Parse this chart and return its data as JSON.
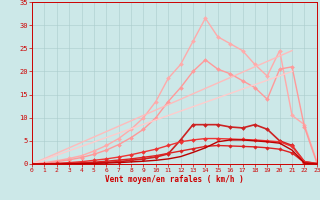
{
  "xlabel": "Vent moyen/en rafales ( km/h )",
  "background_color": "#cce8e8",
  "grid_color": "#aacccc",
  "xlim": [
    0,
    23
  ],
  "ylim": [
    0,
    35
  ],
  "xticks": [
    0,
    1,
    2,
    3,
    4,
    5,
    6,
    7,
    8,
    9,
    10,
    11,
    12,
    13,
    14,
    15,
    16,
    17,
    18,
    19,
    20,
    21,
    22,
    23
  ],
  "yticks": [
    0,
    5,
    10,
    15,
    20,
    25,
    30,
    35
  ],
  "lines": [
    {
      "x": [
        0,
        1,
        2,
        3,
        4,
        5,
        6,
        7,
        8,
        9,
        10,
        11,
        12,
        13,
        14,
        15,
        16,
        17,
        18,
        19,
        20,
        21,
        22,
        23
      ],
      "y": [
        0,
        0.3,
        0.7,
        1.2,
        1.8,
        2.8,
        4.0,
        5.5,
        7.5,
        10.0,
        13.5,
        18.5,
        21.5,
        26.5,
        31.5,
        27.5,
        26.0,
        24.5,
        21.5,
        19.0,
        24.5,
        10.5,
        8.5,
        0.5
      ],
      "color": "#ffaaaa",
      "lw": 1.0,
      "marker": "D",
      "ms": 2.0
    },
    {
      "x": [
        0,
        1,
        2,
        3,
        4,
        5,
        6,
        7,
        8,
        9,
        10,
        11,
        12,
        13,
        14,
        15,
        16,
        17,
        18,
        19,
        20,
        21,
        22,
        23
      ],
      "y": [
        0,
        0.2,
        0.5,
        0.9,
        1.4,
        2.1,
        3.0,
        4.2,
        5.7,
        7.5,
        10.0,
        13.5,
        16.5,
        20.0,
        22.5,
        20.5,
        19.5,
        18.0,
        16.5,
        14.0,
        20.5,
        21.0,
        8.0,
        0.3
      ],
      "color": "#ff9999",
      "lw": 1.0,
      "marker": "D",
      "ms": 2.0
    },
    {
      "x": [
        0,
        21
      ],
      "y": [
        0,
        24.5
      ],
      "color": "#ffbbbb",
      "lw": 1.0,
      "marker": null,
      "ms": 0
    },
    {
      "x": [
        0,
        21
      ],
      "y": [
        0,
        20.0
      ],
      "color": "#ffcccc",
      "lw": 1.0,
      "marker": null,
      "ms": 0
    },
    {
      "x": [
        0,
        1,
        2,
        3,
        4,
        5,
        6,
        7,
        8,
        9,
        10,
        11,
        12,
        13,
        14,
        15,
        16,
        17,
        18,
        19,
        20,
        21,
        22,
        23
      ],
      "y": [
        0,
        0,
        0,
        0.05,
        0.1,
        0.2,
        0.35,
        0.5,
        0.8,
        1.1,
        1.5,
        2.2,
        5.2,
        8.5,
        8.5,
        8.5,
        8.0,
        7.8,
        8.5,
        7.5,
        5.0,
        4.0,
        0.5,
        0.1
      ],
      "color": "#cc2222",
      "lw": 1.2,
      "marker": "D",
      "ms": 2.0
    },
    {
      "x": [
        0,
        1,
        2,
        3,
        4,
        5,
        6,
        7,
        8,
        9,
        10,
        11,
        12,
        13,
        14,
        15,
        16,
        17,
        18,
        19,
        20,
        21,
        22,
        23
      ],
      "y": [
        0,
        0.05,
        0.15,
        0.3,
        0.5,
        0.8,
        1.1,
        1.5,
        2.0,
        2.6,
        3.2,
        4.0,
        4.8,
        5.2,
        5.5,
        5.5,
        5.4,
        5.3,
        5.2,
        5.0,
        4.8,
        3.8,
        0.5,
        0.1
      ],
      "color": "#ee3333",
      "lw": 1.0,
      "marker": "D",
      "ms": 2.0
    },
    {
      "x": [
        0,
        1,
        2,
        3,
        4,
        5,
        6,
        7,
        8,
        9,
        10,
        11,
        12,
        13,
        14,
        15,
        16,
        17,
        18,
        19,
        20,
        21,
        22,
        23
      ],
      "y": [
        0,
        0,
        0.05,
        0.15,
        0.25,
        0.4,
        0.6,
        0.85,
        1.1,
        1.45,
        1.8,
        2.3,
        2.8,
        3.3,
        3.8,
        4.0,
        3.9,
        3.8,
        3.7,
        3.5,
        3.2,
        2.4,
        0.3,
        0.05
      ],
      "color": "#dd2222",
      "lw": 1.0,
      "marker": "D",
      "ms": 1.8
    },
    {
      "x": [
        0,
        1,
        2,
        3,
        4,
        5,
        6,
        7,
        8,
        9,
        10,
        11,
        12,
        13,
        14,
        15,
        16,
        17,
        18,
        19,
        20,
        21,
        22,
        23
      ],
      "y": [
        0,
        0,
        0,
        0.05,
        0.1,
        0.15,
        0.2,
        0.3,
        0.45,
        0.6,
        0.8,
        1.1,
        1.6,
        2.5,
        3.5,
        4.8,
        5.2,
        5.2,
        5.0,
        4.8,
        4.5,
        3.0,
        0.2,
        0.0
      ],
      "color": "#bb0000",
      "lw": 1.0,
      "marker": null,
      "ms": 0
    }
  ]
}
